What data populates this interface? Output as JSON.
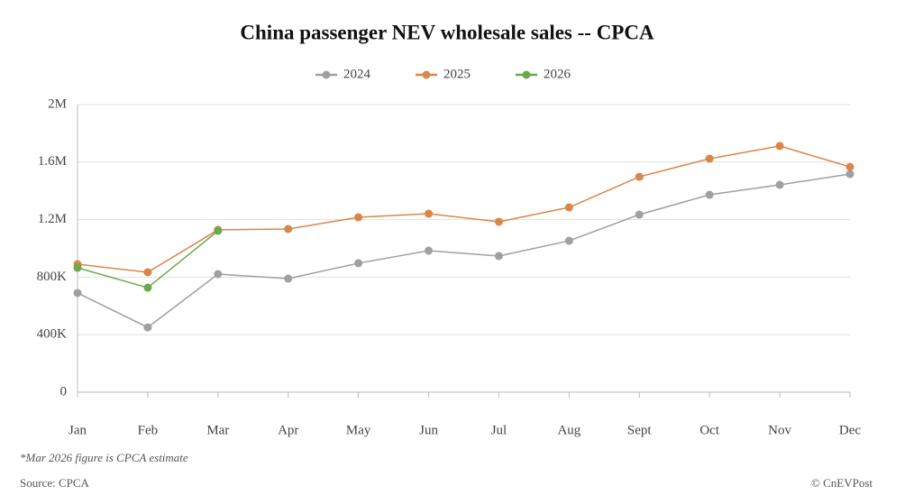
{
  "chart_data": {
    "type": "line",
    "title": "China passenger NEV wholesale sales -- CPCA",
    "categories": [
      "Jan",
      "Feb",
      "Mar",
      "Apr",
      "May",
      "Jun",
      "Jul",
      "Aug",
      "Sept",
      "Oct",
      "Nov",
      "Dec"
    ],
    "series": [
      {
        "name": "2024",
        "color": "#a0a0a0",
        "values": [
          690000,
          451000,
          821000,
          790000,
          897000,
          984000,
          947000,
          1053000,
          1235000,
          1373000,
          1442000,
          1517000
        ]
      },
      {
        "name": "2025",
        "color": "#d9864a",
        "values": [
          890000,
          834000,
          1129000,
          1135000,
          1216000,
          1241000,
          1185000,
          1285000,
          1498000,
          1624000,
          1712000,
          1567000
        ]
      },
      {
        "name": "2026",
        "color": "#6aa84f",
        "values": [
          865000,
          727000,
          1122000,
          null,
          null,
          null,
          null,
          null,
          null,
          null,
          null,
          null
        ]
      }
    ],
    "ylim": [
      0,
      2000000
    ],
    "yticks": [
      0,
      {
        "value": 400000,
        "label": "400K"
      },
      {
        "value": 800000,
        "label": "800K"
      },
      {
        "value": 1200000,
        "label": "1.2M"
      },
      {
        "value": 1600000,
        "label": "1.6M"
      },
      {
        "value": 2000000,
        "label": "2M"
      }
    ],
    "grid": true,
    "legend": "top",
    "footnote": "*Mar 2026 figure is CPCA estimate",
    "source": "Source: CPCA",
    "credit": "© CnEVPost"
  }
}
